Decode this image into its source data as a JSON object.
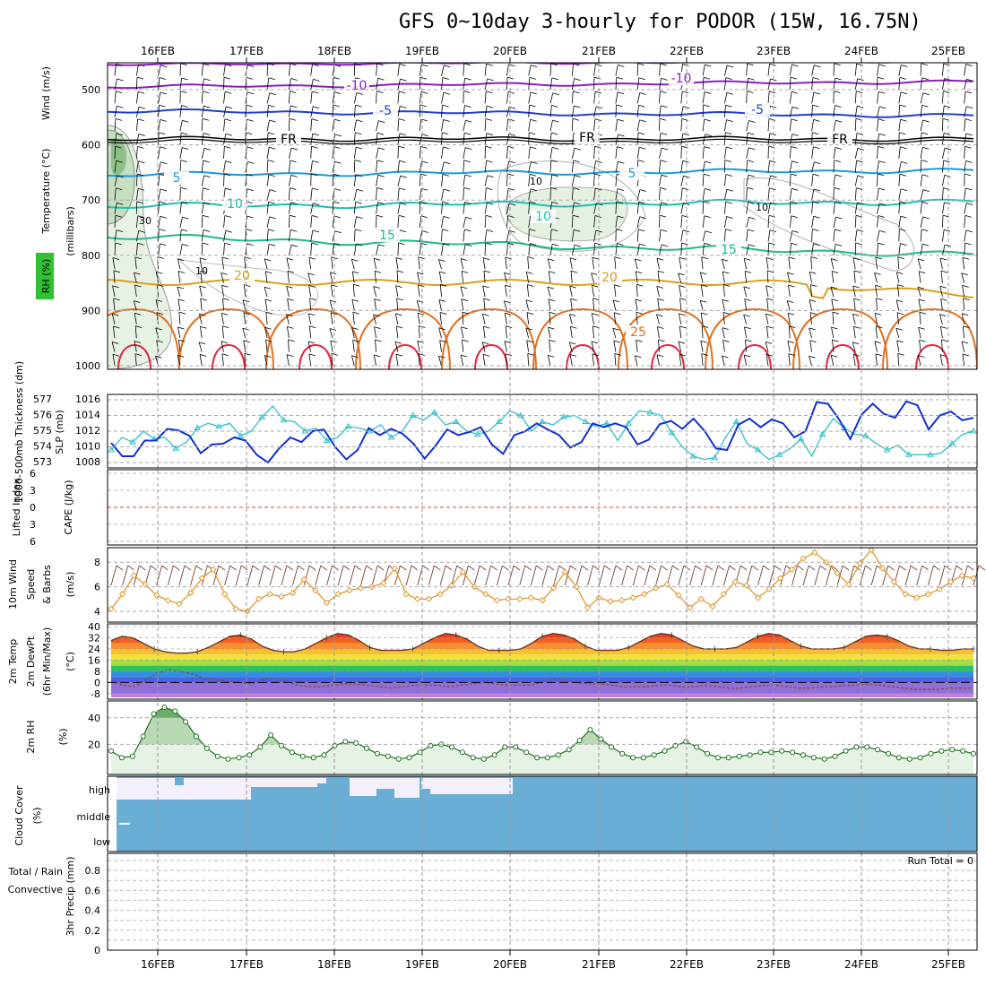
{
  "title": "GFS 0~10day 3-hourly for PODOR (15W, 16.75N)",
  "dates": [
    "16FEB",
    "17FEB",
    "18FEB",
    "19FEB",
    "20FEB",
    "21FEB",
    "22FEB",
    "23FEB",
    "24FEB",
    "25FEB"
  ],
  "colors": {
    "purple": "#8a1fc0",
    "blue": "#1f3fcf",
    "black": "#000000",
    "lightblue": "#1a9ad8",
    "teal": "#20c0b0",
    "green_teal": "#20b890",
    "gold": "#d8a020",
    "orange": "#e07020",
    "red": "#e02840",
    "cyan": "#30c0c8",
    "navy": "#1030d0",
    "cloud": "#6aaed6"
  },
  "panels": {
    "upper_air": {
      "ylabel_wind": "Wind (m/s)",
      "ylabel_temp": "Temperature (°C)",
      "ylabel_rh": "RH (%)",
      "ylabel_mb": "(millibars)",
      "pressure_ticks": [
        "500",
        "600",
        "700",
        "800",
        "900",
        "1000"
      ],
      "contour_labels": [
        {
          "text": "-10",
          "color": "purple"
        },
        {
          "text": "-10",
          "color": "purple"
        },
        {
          "text": "-5",
          "color": "blue"
        },
        {
          "text": "-5",
          "color": "blue"
        },
        {
          "text": "FR",
          "color": "black"
        },
        {
          "text": "FR",
          "color": "black"
        },
        {
          "text": "FR",
          "color": "black"
        },
        {
          "text": "5",
          "color": "lightblue"
        },
        {
          "text": "5",
          "color": "lightblue"
        },
        {
          "text": "10",
          "color": "teal"
        },
        {
          "text": "10",
          "color": "teal"
        },
        {
          "text": "15",
          "color": "green_teal"
        },
        {
          "text": "15",
          "color": "green_teal"
        },
        {
          "text": "20",
          "color": "gold"
        },
        {
          "text": "20",
          "color": "gold"
        },
        {
          "text": "25",
          "color": "orange"
        }
      ],
      "rh_labels": [
        "10",
        "30",
        "10",
        "10"
      ]
    },
    "thickness_slp": {
      "ylabel_left": "1000-500mb Thickness (dm)",
      "ylabel_right": "SLP (mb)",
      "left_ticks": [
        "577",
        "576",
        "575",
        "574",
        "573"
      ],
      "right_ticks": [
        "1016",
        "1014",
        "1012",
        "1010",
        "1008"
      ]
    },
    "cape_li": {
      "ylabel_left": "Lifted Index",
      "ylabel_right": "CAPE (J/kg)",
      "ticks": [
        "6",
        "3",
        "0",
        "3",
        "6"
      ]
    },
    "wind10m": {
      "ylabel_1": "10m Wind",
      "ylabel_2": "Speed",
      "ylabel_3": "& Barbs",
      "ylabel_unit": "(m/s)",
      "ticks": [
        "8",
        "6",
        "4"
      ]
    },
    "temp2m": {
      "ylabel_1": "2m Temp",
      "ylabel_2": "2m DewPt",
      "ylabel_3": "(6hr Min/Max)",
      "ylabel_unit": "(°C)",
      "ticks": [
        "40",
        "32",
        "24",
        "16",
        "8",
        "0",
        "-8"
      ]
    },
    "rh2m": {
      "ylabel": "2m RH",
      "ylabel_unit": "(%)",
      "ticks": [
        "40",
        "20"
      ]
    },
    "cloud": {
      "ylabel": "Cloud Cover",
      "ylabel_unit": "(%)",
      "levels": [
        "high",
        "middle",
        "low"
      ]
    },
    "precip": {
      "ylabel_1": "Total / Rain",
      "ylabel_2": "Convective",
      "ylabel_3": "3hr Precip (mm)",
      "ticks": [
        "0.8",
        "0.6",
        "0.4",
        "0.2",
        "0"
      ],
      "run_total": "Run Total = 0"
    }
  },
  "chart_data": [
    {
      "type": "line",
      "panel": "thickness_slp",
      "series": [
        {
          "name": "1000-500mb Thickness (dm)",
          "color": "cyan",
          "values": [
            573.8,
            574.6,
            574.3,
            575.0,
            574.5,
            574.6,
            573.9,
            574.3,
            575.2,
            575.5,
            575.3,
            575.5,
            574.7,
            575.0,
            575.9,
            576.6,
            575.7,
            575.6,
            575.0,
            575.2,
            574.4,
            574.6,
            575.3,
            575.2,
            575.0,
            575.4,
            574.6,
            575.0,
            576.0,
            575.7,
            576.2,
            575.4,
            575.6,
            575.0,
            574.8,
            575.0,
            575.6,
            576.3,
            576.0,
            575.0,
            575.6,
            575.4,
            575.9,
            576.0,
            575.6,
            575.3,
            575.5,
            574.4,
            575.5,
            576.3,
            576.2,
            576.0,
            574.9,
            574.0,
            573.4,
            573.2,
            573.3,
            574.6,
            575.6,
            574.2,
            573.8,
            573.2,
            573.5,
            573.9,
            574.5,
            573.4,
            574.8,
            575.8,
            575.2,
            574.8,
            574.7,
            574.2,
            573.8,
            574.1,
            573.5,
            573.5,
            573.5,
            573.6,
            574.2,
            574.8,
            575.0
          ]
        },
        {
          "name": "SLP (mb)",
          "color": "navy",
          "values": [
            1010.5,
            1008.8,
            1008.8,
            1010.8,
            1010.8,
            1012.3,
            1012.1,
            1011.4,
            1009.2,
            1010.3,
            1010.4,
            1011.2,
            1010.8,
            1009.0,
            1008.0,
            1009.8,
            1011.2,
            1010.6,
            1012.0,
            1012.2,
            1010.0,
            1008.4,
            1009.6,
            1012.4,
            1011.5,
            1012.3,
            1011.7,
            1010.4,
            1008.5,
            1010.2,
            1012.2,
            1011.5,
            1011.9,
            1012.5,
            1010.3,
            1009.1,
            1011.5,
            1012.0,
            1013.0,
            1012.2,
            1011.5,
            1009.9,
            1010.6,
            1013.0,
            1012.5,
            1013.0,
            1012.5,
            1010.3,
            1010.9,
            1012.9,
            1013.3,
            1012.3,
            1013.6,
            1012.0,
            1009.8,
            1009.6,
            1012.8,
            1013.6,
            1012.5,
            1013.5,
            1013.0,
            1011.2,
            1012.0,
            1015.7,
            1015.5,
            1013.5,
            1011.0,
            1014.1,
            1015.5,
            1014.2,
            1013.7,
            1015.8,
            1015.3,
            1012.2,
            1014.0,
            1014.5,
            1013.4,
            1013.7
          ]
        }
      ]
    },
    {
      "type": "line",
      "panel": "wind10m",
      "series": [
        {
          "name": "10m Wind Speed",
          "color": "orange",
          "values": [
            4.2,
            5.4,
            6.9,
            6.2,
            5.3,
            4.9,
            4.6,
            5.5,
            6.7,
            7.4,
            5.4,
            4.2,
            4.0,
            5.0,
            5.4,
            5.2,
            5.5,
            6.6,
            5.7,
            4.7,
            5.4,
            5.7,
            5.9,
            6.0,
            6.3,
            7.5,
            5.4,
            5.0,
            5.0,
            5.4,
            6.1,
            7.2,
            6.0,
            5.4,
            4.9,
            5.0,
            5.0,
            5.1,
            4.9,
            5.9,
            7.2,
            6.0,
            4.3,
            5.1,
            4.8,
            4.9,
            5.1,
            5.4,
            5.9,
            6.2,
            5.3,
            4.3,
            5.0,
            4.4,
            5.4,
            6.4,
            6.1,
            5.1,
            5.8,
            6.7,
            7.4,
            8.3,
            8.8,
            8.0,
            7.1,
            6.2,
            7.9,
            9.0,
            7.5,
            6.4,
            5.4,
            5.1,
            5.4,
            5.8,
            6.4,
            6.9,
            6.7
          ]
        }
      ]
    },
    {
      "type": "area",
      "panel": "temp2m",
      "series": [
        {
          "name": "2m Temp",
          "color": "dark",
          "values": [
            30,
            33,
            32,
            28,
            24,
            22,
            21,
            21,
            22,
            25,
            29,
            33,
            34,
            31,
            26,
            23,
            22,
            22,
            24,
            28,
            32,
            35,
            34,
            30,
            25,
            23,
            23,
            23,
            24,
            28,
            32,
            35,
            34,
            31,
            26,
            23,
            23,
            23,
            24,
            28,
            33,
            35,
            34,
            31,
            26,
            23,
            23,
            23,
            25,
            29,
            33,
            35,
            34,
            30,
            26,
            24,
            24,
            24,
            25,
            29,
            33,
            35,
            34,
            30,
            26,
            24,
            24,
            24,
            25,
            29,
            33,
            34,
            33,
            30,
            26,
            24,
            24,
            23,
            23,
            24,
            24
          ]
        },
        {
          "name": "2m DewPt",
          "color": "dark",
          "values": [
            1,
            -2,
            -3,
            2,
            7,
            9,
            8,
            6,
            3,
            2,
            1,
            0,
            -1,
            2,
            3,
            1,
            -2,
            -3,
            -3,
            -2,
            -1,
            -1,
            -2,
            -3,
            -4,
            -3,
            -2,
            -2,
            -2,
            -3,
            -2,
            -1,
            0,
            -1,
            -2,
            -2,
            -2,
            0,
            3,
            1,
            0,
            -1,
            -1,
            -2,
            -3,
            -3,
            -3,
            -2,
            -2,
            -3,
            -3,
            -2,
            -3,
            -4,
            -4,
            -3,
            -2,
            -2,
            -3,
            -4,
            -4,
            -3,
            -3,
            -2,
            -2,
            -1,
            -2,
            -3,
            -4,
            -5,
            -5,
            -5,
            -4,
            -4,
            -4
          ]
        }
      ]
    },
    {
      "type": "line",
      "panel": "rh2m",
      "series": [
        {
          "name": "2m RH",
          "color": "darkgreen",
          "values": [
            15,
            10,
            11,
            26,
            43,
            48,
            45,
            37,
            26,
            17,
            11,
            9,
            10,
            12,
            18,
            27,
            19,
            14,
            11,
            10,
            12,
            19,
            22,
            21,
            17,
            13,
            11,
            9,
            10,
            14,
            19,
            20,
            18,
            14,
            10,
            9,
            12,
            18,
            18,
            14,
            10,
            10,
            12,
            16,
            23,
            31,
            24,
            18,
            13,
            10,
            10,
            12,
            15,
            19,
            22,
            18,
            13,
            10,
            10,
            11,
            12,
            14,
            14,
            15,
            14,
            12,
            10,
            9,
            11,
            15,
            18,
            18,
            16,
            13,
            10,
            9,
            10,
            13,
            15,
            16,
            15,
            13
          ]
        }
      ]
    },
    {
      "type": "line",
      "panel": "precip",
      "series": [
        {
          "name": "3hr Precip (mm)",
          "color": "green",
          "values": []
        }
      ]
    }
  ]
}
